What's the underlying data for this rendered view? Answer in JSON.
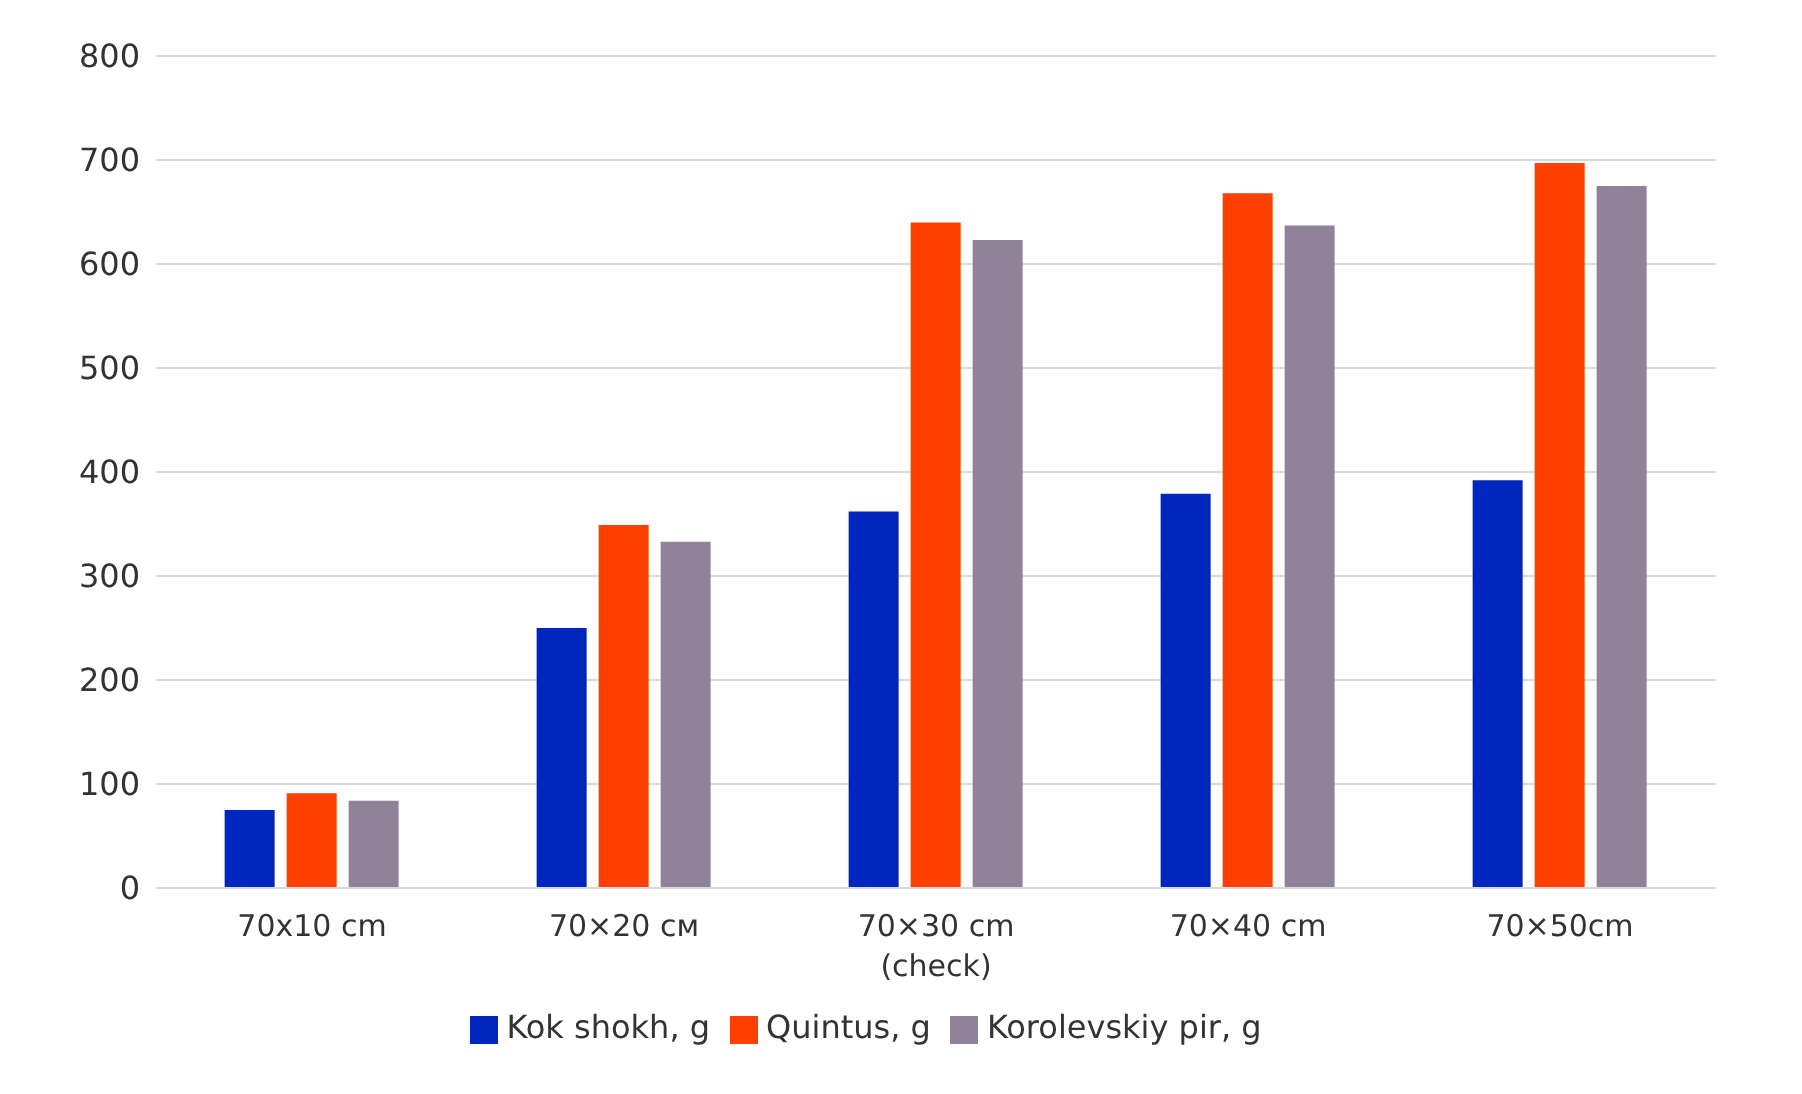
{
  "chart_data": {
    "type": "bar",
    "categories": [
      "70x10 cm",
      "70×20 см",
      "70×30 cm\n(check)",
      "70×40 cm",
      "70×50cm"
    ],
    "series": [
      {
        "name": "Kok shokh, g",
        "color": "#0026c0",
        "values": [
          75,
          250,
          362,
          379,
          392
        ]
      },
      {
        "name": "Quintus, g",
        "color": "#ff4000",
        "values": [
          91,
          349,
          640,
          668,
          697
        ]
      },
      {
        "name": "Korolevskiy pir, g",
        "color": "#8f8299",
        "values": [
          84,
          333,
          623,
          637,
          675
        ]
      }
    ],
    "ylim": [
      0,
      800
    ],
    "yticks": [
      0,
      100,
      200,
      300,
      400,
      500,
      600,
      700,
      800
    ],
    "grid": "y",
    "legend": "bottom"
  }
}
